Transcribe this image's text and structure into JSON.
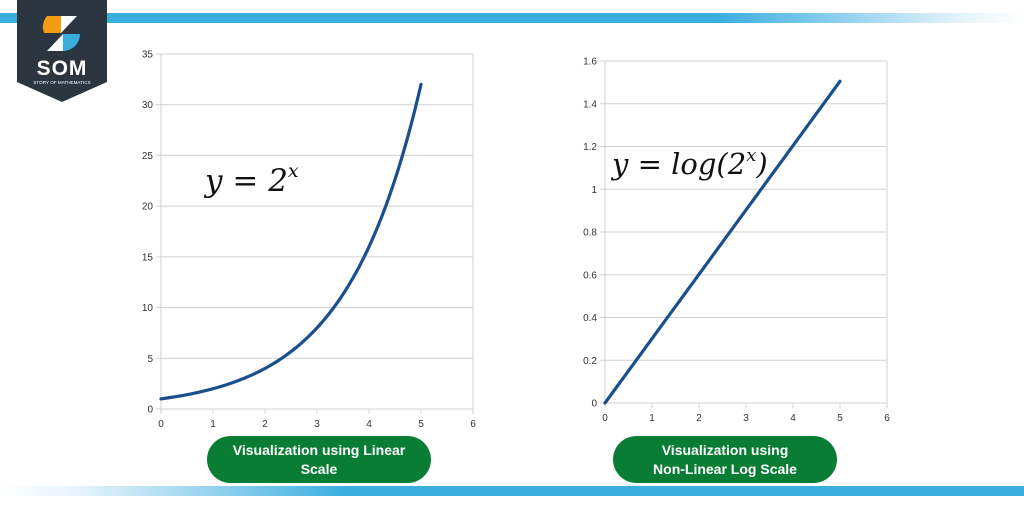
{
  "branding": {
    "logo_text": "SOM",
    "logo_subtext": "STORY OF MATHEMATICS",
    "colors": {
      "banner": "#2b3640",
      "orange": "#f39c12",
      "blue": "#3aaedf",
      "white": "#ffffff"
    }
  },
  "decor": {
    "stripe_color": "#3aaedf",
    "pill_color": "#0a7d35",
    "line_color": "#1a4f8f",
    "grid_color": "#d0d0d0"
  },
  "charts": {
    "left": {
      "formula_base": "y = 2",
      "formula_sup": "x",
      "caption_line1": "Visualization using Linear",
      "caption_line2": "Scale"
    },
    "right": {
      "formula_base": "y = log(2",
      "formula_sup": "x",
      "formula_close": ")",
      "caption_line1": "Visualization using",
      "caption_line2": "Non-Linear Log Scale"
    }
  },
  "chart_data": [
    {
      "type": "line",
      "title": "Visualization using Linear Scale",
      "annotation": "y = 2^x",
      "xlabel": "",
      "ylabel": "",
      "x_ticks": [
        0,
        1,
        2,
        3,
        4,
        5,
        6
      ],
      "y_ticks": [
        0,
        5,
        10,
        15,
        20,
        25,
        30,
        35
      ],
      "xlim": [
        0,
        6
      ],
      "ylim": [
        0,
        35
      ],
      "grid": true,
      "legend": false,
      "series": [
        {
          "name": "y = 2^x",
          "x": [
            0,
            0.5,
            1,
            1.5,
            2,
            2.5,
            3,
            3.5,
            4,
            4.5,
            5
          ],
          "values": [
            1,
            1.41,
            2,
            2.83,
            4,
            5.66,
            8,
            11.31,
            16,
            22.63,
            32
          ]
        }
      ]
    },
    {
      "type": "line",
      "title": "Visualization using Non-Linear Log Scale",
      "annotation": "y = log(2^x)",
      "xlabel": "",
      "ylabel": "",
      "x_ticks": [
        0,
        1,
        2,
        3,
        4,
        5,
        6
      ],
      "y_ticks": [
        0,
        0.2,
        0.4,
        0.6,
        0.8,
        1,
        1.2,
        1.4,
        1.6
      ],
      "xlim": [
        0,
        6
      ],
      "ylim": [
        0,
        1.6
      ],
      "grid": true,
      "legend": false,
      "series": [
        {
          "name": "y = log(2^x)",
          "x": [
            0,
            1,
            2,
            3,
            4,
            5
          ],
          "values": [
            0,
            0.301,
            0.602,
            0.903,
            1.204,
            1.505
          ]
        }
      ]
    }
  ]
}
